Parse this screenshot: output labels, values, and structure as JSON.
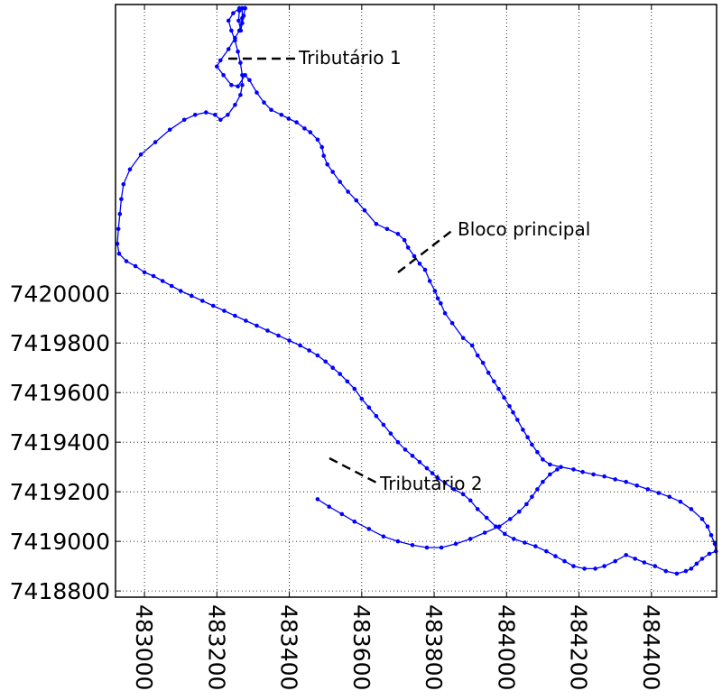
{
  "chart_data": {
    "type": "line",
    "title": "",
    "xlabel": "",
    "ylabel": "",
    "xlim": [
      482920,
      484580
    ],
    "ylim": [
      7418775,
      7421165
    ],
    "x_ticks": [
      483000,
      483200,
      483400,
      483600,
      483800,
      484000,
      484200,
      484400
    ],
    "x_tick_labels": [
      "483000",
      "483200",
      "483400",
      "483600",
      "483800",
      "484000",
      "484200",
      "484400"
    ],
    "y_ticks": [
      7418800,
      7419000,
      7419200,
      7419400,
      7419600,
      7419800,
      7420000
    ],
    "y_tick_labels": [
      "7418800",
      "7419000",
      "7419200",
      "7419400",
      "7419600",
      "7419800",
      "7420000"
    ],
    "grid": true,
    "grid_style": "dotted",
    "line_color": "#0000ff",
    "series": [
      {
        "points": [
          [
            483278,
            7421150
          ],
          [
            483274,
            7421120
          ],
          [
            483270,
            7421090
          ],
          [
            483266,
            7421060
          ],
          [
            483260,
            7421100
          ],
          [
            483262,
            7421140
          ],
          [
            483270,
            7421150
          ],
          [
            483270,
            7421110
          ],
          [
            483262,
            7421060
          ],
          [
            483250,
            7421030
          ],
          [
            483232,
            7420985
          ],
          [
            483210,
            7420940
          ],
          [
            483200,
            7420915
          ],
          [
            483218,
            7420880
          ],
          [
            483240,
            7420840
          ],
          [
            483258,
            7420835
          ],
          [
            483278,
            7420880
          ],
          [
            483290,
            7420860
          ],
          [
            483310,
            7420810
          ],
          [
            483330,
            7420770
          ],
          [
            483350,
            7420740
          ],
          [
            483378,
            7420720
          ],
          [
            483398,
            7420705
          ],
          [
            483420,
            7420690
          ],
          [
            483442,
            7420665
          ],
          [
            483458,
            7420650
          ],
          [
            483478,
            7420620
          ],
          [
            483490,
            7420590
          ],
          [
            483495,
            7420555
          ],
          [
            483505,
            7420520
          ],
          [
            483520,
            7420490
          ],
          [
            483540,
            7420450
          ],
          [
            483562,
            7420410
          ],
          [
            483585,
            7420375
          ],
          [
            483608,
            7420335
          ],
          [
            483640,
            7420280
          ],
          [
            483670,
            7420260
          ],
          [
            483700,
            7420240
          ],
          [
            483718,
            7420215
          ],
          [
            483728,
            7420185
          ],
          [
            483745,
            7420150
          ],
          [
            483760,
            7420120
          ],
          [
            483775,
            7420095
          ],
          [
            483788,
            7420050
          ],
          [
            483802,
            7420010
          ],
          [
            483810,
            7419980
          ],
          [
            483818,
            7419960
          ],
          [
            483830,
            7419920
          ],
          [
            483850,
            7419880
          ],
          [
            483880,
            7419820
          ],
          [
            483905,
            7419790
          ],
          [
            483920,
            7419750
          ],
          [
            483935,
            7419720
          ],
          [
            483950,
            7419680
          ],
          [
            483965,
            7419645
          ],
          [
            483978,
            7419615
          ],
          [
            483993,
            7419580
          ],
          [
            484008,
            7419545
          ],
          [
            484018,
            7419520
          ],
          [
            484030,
            7419490
          ],
          [
            484045,
            7419450
          ],
          [
            484058,
            7419420
          ],
          [
            484070,
            7419390
          ],
          [
            484085,
            7419360
          ],
          [
            484100,
            7419330
          ],
          [
            484120,
            7419310
          ],
          [
            484150,
            7419300
          ],
          [
            484185,
            7419290
          ],
          [
            484210,
            7419280
          ],
          [
            484240,
            7419270
          ],
          [
            484270,
            7419262
          ],
          [
            484300,
            7419250
          ],
          [
            484330,
            7419240
          ],
          [
            484360,
            7419225
          ],
          [
            484390,
            7419210
          ],
          [
            484420,
            7419195
          ],
          [
            484450,
            7419180
          ],
          [
            484480,
            7419160
          ],
          [
            484510,
            7419130
          ],
          [
            484540,
            7419090
          ],
          [
            484555,
            7419060
          ],
          [
            484565,
            7419025
          ],
          [
            484575,
            7418990
          ],
          [
            484578,
            7418960
          ],
          [
            484560,
            7418950
          ],
          [
            484540,
            7418930
          ],
          [
            484525,
            7418910
          ],
          [
            484510,
            7418890
          ],
          [
            484495,
            7418880
          ],
          [
            484470,
            7418870
          ],
          [
            484440,
            7418880
          ],
          [
            484410,
            7418900
          ],
          [
            484380,
            7418915
          ],
          [
            484355,
            7418930
          ],
          [
            484330,
            7418945
          ],
          [
            484300,
            7418920
          ],
          [
            484270,
            7418900
          ],
          [
            484245,
            7418890
          ],
          [
            484215,
            7418890
          ],
          [
            484185,
            7418900
          ],
          [
            484160,
            7418920
          ],
          [
            484135,
            7418940
          ],
          [
            484110,
            7418960
          ],
          [
            484080,
            7418980
          ],
          [
            484050,
            7418995
          ],
          [
            484020,
            7419010
          ],
          [
            483995,
            7419030
          ],
          [
            483970,
            7419060
          ],
          [
            483945,
            7419095
          ],
          [
            483920,
            7419130
          ],
          [
            483900,
            7419165
          ],
          [
            483880,
            7419190
          ],
          [
            483855,
            7419210
          ],
          [
            483830,
            7419235
          ],
          [
            483810,
            7419255
          ],
          [
            483795,
            7419275
          ],
          [
            483780,
            7419295
          ],
          [
            483760,
            7419320
          ],
          [
            483740,
            7419345
          ],
          [
            483720,
            7419370
          ],
          [
            483700,
            7419400
          ],
          [
            483680,
            7419435
          ],
          [
            483660,
            7419470
          ],
          [
            483640,
            7419505
          ],
          [
            483620,
            7419540
          ],
          [
            483600,
            7419575
          ],
          [
            483580,
            7419615
          ],
          [
            483560,
            7419645
          ],
          [
            483540,
            7419675
          ],
          [
            483520,
            7419700
          ],
          [
            483500,
            7419725
          ],
          [
            483478,
            7419750
          ],
          [
            483455,
            7419770
          ],
          [
            483430,
            7419790
          ],
          [
            483400,
            7419810
          ],
          [
            483370,
            7419830
          ],
          [
            483340,
            7419850
          ],
          [
            483310,
            7419870
          ],
          [
            483280,
            7419890
          ],
          [
            483250,
            7419910
          ],
          [
            483220,
            7419930
          ],
          [
            483190,
            7419950
          ],
          [
            483160,
            7419970
          ],
          [
            483130,
            7419990
          ],
          [
            483100,
            7420010
          ],
          [
            483075,
            7420030
          ],
          [
            483050,
            7420050
          ],
          [
            483025,
            7420070
          ],
          [
            483000,
            7420085
          ],
          [
            482975,
            7420110
          ],
          [
            482950,
            7420130
          ],
          [
            482930,
            7420160
          ],
          [
            482925,
            7420200
          ],
          [
            482928,
            7420260
          ],
          [
            482932,
            7420320
          ],
          [
            482936,
            7420380
          ],
          [
            482942,
            7420440
          ],
          [
            482960,
            7420500
          ],
          [
            482990,
            7420560
          ],
          [
            483030,
            7420610
          ],
          [
            483070,
            7420660
          ],
          [
            483110,
            7420700
          ],
          [
            483140,
            7420720
          ],
          [
            483170,
            7420730
          ],
          [
            483195,
            7420720
          ],
          [
            483210,
            7420700
          ],
          [
            483230,
            7420720
          ],
          [
            483250,
            7420760
          ],
          [
            483265,
            7420800
          ],
          [
            483270,
            7420840
          ],
          [
            483270,
            7420880
          ],
          [
            483265,
            7420930
          ],
          [
            483258,
            7420975
          ],
          [
            483250,
            7421020
          ],
          [
            483240,
            7421060
          ],
          [
            483232,
            7421100
          ],
          [
            483245,
            7421130
          ],
          [
            483262,
            7421150
          ],
          [
            483278,
            7421150
          ]
        ]
      },
      {
        "points": [
          [
            483478,
            7419170
          ],
          [
            483510,
            7419140
          ],
          [
            483545,
            7419110
          ],
          [
            483580,
            7419080
          ],
          [
            483620,
            7419050
          ],
          [
            483660,
            7419020
          ],
          [
            483700,
            7419000
          ],
          [
            483740,
            7418985
          ],
          [
            483780,
            7418975
          ],
          [
            483820,
            7418975
          ],
          [
            483860,
            7418990
          ],
          [
            483900,
            7419010
          ],
          [
            483940,
            7419035
          ],
          [
            483980,
            7419060
          ],
          [
            484010,
            7419090
          ],
          [
            484035,
            7419120
          ],
          [
            484055,
            7419150
          ],
          [
            484070,
            7419180
          ],
          [
            484085,
            7419210
          ],
          [
            484100,
            7419240
          ],
          [
            484120,
            7419270
          ],
          [
            484140,
            7419290
          ]
        ]
      }
    ],
    "annotations": [
      {
        "text": "Tributário 1"
      },
      {
        "text": "Bloco principal"
      },
      {
        "text": "Tributário 2"
      }
    ]
  }
}
